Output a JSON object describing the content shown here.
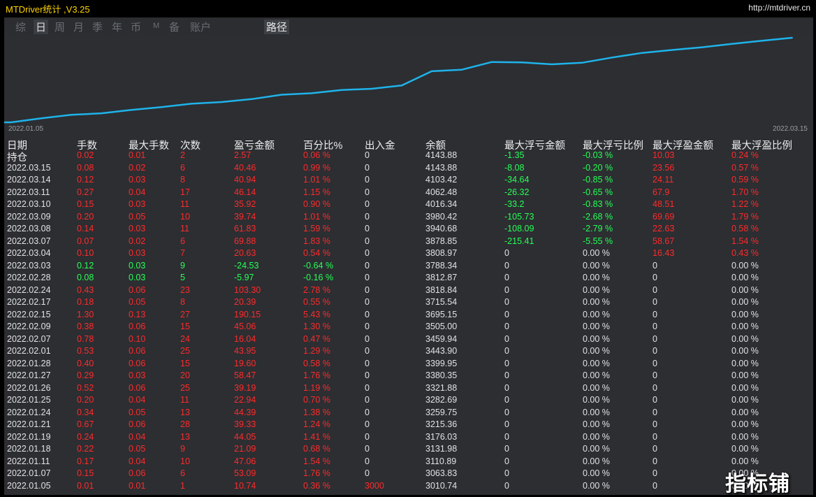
{
  "app": {
    "title": "MTDriver统计 ,V3.25",
    "url": "http://mtdriver.cn"
  },
  "tabs": [
    {
      "label": "综",
      "active": false
    },
    {
      "label": "日",
      "active": true
    },
    {
      "label": "周",
      "active": false
    },
    {
      "label": "月",
      "active": false
    },
    {
      "label": "季",
      "active": false
    },
    {
      "label": "年",
      "active": false
    },
    {
      "label": "币",
      "active": false
    },
    {
      "label": "M",
      "active": false
    },
    {
      "label": "备",
      "active": false
    },
    {
      "label": "账户",
      "active": false
    }
  ],
  "path_button": "路径",
  "chart_data": {
    "type": "line",
    "x_start_label": "2022.01.05",
    "x_end_label": "2022.03.15",
    "series_color": "#1fb3ea",
    "x": [
      "2022.01.05",
      "2022.01.07",
      "2022.01.11",
      "2022.01.18",
      "2022.01.19",
      "2022.01.21",
      "2022.01.24",
      "2022.01.25",
      "2022.01.26",
      "2022.01.27",
      "2022.01.28",
      "2022.02.01",
      "2022.02.07",
      "2022.02.09",
      "2022.02.15",
      "2022.02.17",
      "2022.02.24",
      "2022.02.28",
      "2022.03.03",
      "2022.03.04",
      "2022.03.07",
      "2022.03.08",
      "2022.03.09",
      "2022.03.10",
      "2022.03.11",
      "2022.03.14",
      "2022.03.15"
    ],
    "values": [
      3010.74,
      3063.83,
      3110.89,
      3131.98,
      3176.03,
      3215.36,
      3259.75,
      3282.69,
      3321.88,
      3380.35,
      3399.95,
      3443.9,
      3459.94,
      3505.0,
      3695.15,
      3715.54,
      3818.84,
      3812.87,
      3788.34,
      3808.97,
      3878.85,
      3940.68,
      3980.42,
      4016.34,
      4062.48,
      4103.42,
      4143.88
    ],
    "ylim": [
      3010.74,
      4143.88
    ]
  },
  "columns": [
    "日期",
    "手数",
    "最大手数",
    "次数",
    "盈亏金额",
    "百分比%",
    "出入金",
    "余额",
    "最大浮亏金额",
    "最大浮亏比例",
    "最大浮盈金额",
    "最大浮盈比例"
  ],
  "holdings_label": "持仓",
  "colors": {
    "red": "#ff2a2a",
    "green": "#27ff55",
    "white": "#e2e2e2"
  },
  "rows": [
    {
      "date": "",
      "lots": "0.02",
      "max_lots": "0.01",
      "trades": "2",
      "pnl": "2.57",
      "pct": "0.06 %",
      "io": "0",
      "balance": "4143.88",
      "max_loss": "-1.35",
      "max_loss_pct": "-0.03 %",
      "max_gain": "10.03",
      "max_gain_pct": "0.24 %",
      "pc": "red",
      "lc": "green",
      "gc": "red",
      "ioc": "white"
    },
    {
      "date": "2022.03.15",
      "lots": "0.08",
      "max_lots": "0.02",
      "trades": "6",
      "pnl": "40.46",
      "pct": "0.99 %",
      "io": "0",
      "balance": "4143.88",
      "max_loss": "-8.08",
      "max_loss_pct": "-0.20 %",
      "max_gain": "23.56",
      "max_gain_pct": "0.57 %",
      "pc": "red",
      "lc": "green",
      "gc": "red",
      "ioc": "white"
    },
    {
      "date": "2022.03.14",
      "lots": "0.12",
      "max_lots": "0.03",
      "trades": "8",
      "pnl": "40.94",
      "pct": "1.01 %",
      "io": "0",
      "balance": "4103.42",
      "max_loss": "-34.64",
      "max_loss_pct": "-0.85 %",
      "max_gain": "24.11",
      "max_gain_pct": "0.59 %",
      "pc": "red",
      "lc": "green",
      "gc": "red",
      "ioc": "white"
    },
    {
      "date": "2022.03.11",
      "lots": "0.27",
      "max_lots": "0.04",
      "trades": "17",
      "pnl": "46.14",
      "pct": "1.15 %",
      "io": "0",
      "balance": "4062.48",
      "max_loss": "-26.32",
      "max_loss_pct": "-0.65 %",
      "max_gain": "67.9",
      "max_gain_pct": "1.70 %",
      "pc": "red",
      "lc": "green",
      "gc": "red",
      "ioc": "white"
    },
    {
      "date": "2022.03.10",
      "lots": "0.15",
      "max_lots": "0.03",
      "trades": "11",
      "pnl": "35.92",
      "pct": "0.90 %",
      "io": "0",
      "balance": "4016.34",
      "max_loss": "-33.2",
      "max_loss_pct": "-0.83 %",
      "max_gain": "48.51",
      "max_gain_pct": "1.22 %",
      "pc": "red",
      "lc": "green",
      "gc": "red",
      "ioc": "white"
    },
    {
      "date": "2022.03.09",
      "lots": "0.20",
      "max_lots": "0.05",
      "trades": "10",
      "pnl": "39.74",
      "pct": "1.01 %",
      "io": "0",
      "balance": "3980.42",
      "max_loss": "-105.73",
      "max_loss_pct": "-2.68 %",
      "max_gain": "69.69",
      "max_gain_pct": "1.79 %",
      "pc": "red",
      "lc": "green",
      "gc": "red",
      "ioc": "white"
    },
    {
      "date": "2022.03.08",
      "lots": "0.14",
      "max_lots": "0.03",
      "trades": "11",
      "pnl": "61.83",
      "pct": "1.59 %",
      "io": "0",
      "balance": "3940.68",
      "max_loss": "-108.09",
      "max_loss_pct": "-2.79 %",
      "max_gain": "22.63",
      "max_gain_pct": "0.58 %",
      "pc": "red",
      "lc": "green",
      "gc": "red",
      "ioc": "white"
    },
    {
      "date": "2022.03.07",
      "lots": "0.07",
      "max_lots": "0.02",
      "trades": "6",
      "pnl": "69.88",
      "pct": "1.83 %",
      "io": "0",
      "balance": "3878.85",
      "max_loss": "-215.41",
      "max_loss_pct": "-5.55 %",
      "max_gain": "58.67",
      "max_gain_pct": "1.54 %",
      "pc": "red",
      "lc": "green",
      "gc": "red",
      "ioc": "white"
    },
    {
      "date": "2022.03.04",
      "lots": "0.10",
      "max_lots": "0.03",
      "trades": "7",
      "pnl": "20.63",
      "pct": "0.54 %",
      "io": "0",
      "balance": "3808.97",
      "max_loss": "0",
      "max_loss_pct": "0.00 %",
      "max_gain": "16.43",
      "max_gain_pct": "0.43 %",
      "pc": "red",
      "lc": "white",
      "gc": "red",
      "ioc": "white"
    },
    {
      "date": "2022.03.03",
      "lots": "0.12",
      "max_lots": "0.03",
      "trades": "9",
      "pnl": "-24.53",
      "pct": "-0.64 %",
      "io": "0",
      "balance": "3788.34",
      "max_loss": "0",
      "max_loss_pct": "0.00 %",
      "max_gain": "0",
      "max_gain_pct": "0.00 %",
      "pc": "green",
      "lc": "white",
      "gc": "white",
      "ioc": "white"
    },
    {
      "date": "2022.02.28",
      "lots": "0.08",
      "max_lots": "0.03",
      "trades": "5",
      "pnl": "-5.97",
      "pct": "-0.16 %",
      "io": "0",
      "balance": "3812.87",
      "max_loss": "0",
      "max_loss_pct": "0.00 %",
      "max_gain": "0",
      "max_gain_pct": "0.00 %",
      "pc": "green",
      "lc": "white",
      "gc": "white",
      "ioc": "white"
    },
    {
      "date": "2022.02.24",
      "lots": "0.43",
      "max_lots": "0.06",
      "trades": "23",
      "pnl": "103.30",
      "pct": "2.78 %",
      "io": "0",
      "balance": "3818.84",
      "max_loss": "0",
      "max_loss_pct": "0.00 %",
      "max_gain": "0",
      "max_gain_pct": "0.00 %",
      "pc": "red",
      "lc": "white",
      "gc": "white",
      "ioc": "white"
    },
    {
      "date": "2022.02.17",
      "lots": "0.18",
      "max_lots": "0.05",
      "trades": "8",
      "pnl": "20.39",
      "pct": "0.55 %",
      "io": "0",
      "balance": "3715.54",
      "max_loss": "0",
      "max_loss_pct": "0.00 %",
      "max_gain": "0",
      "max_gain_pct": "0.00 %",
      "pc": "red",
      "lc": "white",
      "gc": "white",
      "ioc": "white"
    },
    {
      "date": "2022.02.15",
      "lots": "1.30",
      "max_lots": "0.13",
      "trades": "27",
      "pnl": "190.15",
      "pct": "5.43 %",
      "io": "0",
      "balance": "3695.15",
      "max_loss": "0",
      "max_loss_pct": "0.00 %",
      "max_gain": "0",
      "max_gain_pct": "0.00 %",
      "pc": "red",
      "lc": "white",
      "gc": "white",
      "ioc": "white"
    },
    {
      "date": "2022.02.09",
      "lots": "0.38",
      "max_lots": "0.06",
      "trades": "15",
      "pnl": "45.06",
      "pct": "1.30 %",
      "io": "0",
      "balance": "3505.00",
      "max_loss": "0",
      "max_loss_pct": "0.00 %",
      "max_gain": "0",
      "max_gain_pct": "0.00 %",
      "pc": "red",
      "lc": "white",
      "gc": "white",
      "ioc": "white"
    },
    {
      "date": "2022.02.07",
      "lots": "0.78",
      "max_lots": "0.10",
      "trades": "24",
      "pnl": "16.04",
      "pct": "0.47 %",
      "io": "0",
      "balance": "3459.94",
      "max_loss": "0",
      "max_loss_pct": "0.00 %",
      "max_gain": "0",
      "max_gain_pct": "0.00 %",
      "pc": "red",
      "lc": "white",
      "gc": "white",
      "ioc": "white"
    },
    {
      "date": "2022.02.01",
      "lots": "0.53",
      "max_lots": "0.06",
      "trades": "25",
      "pnl": "43.95",
      "pct": "1.29 %",
      "io": "0",
      "balance": "3443.90",
      "max_loss": "0",
      "max_loss_pct": "0.00 %",
      "max_gain": "0",
      "max_gain_pct": "0.00 %",
      "pc": "red",
      "lc": "white",
      "gc": "white",
      "ioc": "white"
    },
    {
      "date": "2022.01.28",
      "lots": "0.40",
      "max_lots": "0.06",
      "trades": "15",
      "pnl": "19.60",
      "pct": "0.58 %",
      "io": "0",
      "balance": "3399.95",
      "max_loss": "0",
      "max_loss_pct": "0.00 %",
      "max_gain": "0",
      "max_gain_pct": "0.00 %",
      "pc": "red",
      "lc": "white",
      "gc": "white",
      "ioc": "white"
    },
    {
      "date": "2022.01.27",
      "lots": "0.29",
      "max_lots": "0.03",
      "trades": "20",
      "pnl": "58.47",
      "pct": "1.76 %",
      "io": "0",
      "balance": "3380.35",
      "max_loss": "0",
      "max_loss_pct": "0.00 %",
      "max_gain": "0",
      "max_gain_pct": "0.00 %",
      "pc": "red",
      "lc": "white",
      "gc": "white",
      "ioc": "white"
    },
    {
      "date": "2022.01.26",
      "lots": "0.52",
      "max_lots": "0.06",
      "trades": "25",
      "pnl": "39.19",
      "pct": "1.19 %",
      "io": "0",
      "balance": "3321.88",
      "max_loss": "0",
      "max_loss_pct": "0.00 %",
      "max_gain": "0",
      "max_gain_pct": "0.00 %",
      "pc": "red",
      "lc": "white",
      "gc": "white",
      "ioc": "white"
    },
    {
      "date": "2022.01.25",
      "lots": "0.20",
      "max_lots": "0.04",
      "trades": "11",
      "pnl": "22.94",
      "pct": "0.70 %",
      "io": "0",
      "balance": "3282.69",
      "max_loss": "0",
      "max_loss_pct": "0.00 %",
      "max_gain": "0",
      "max_gain_pct": "0.00 %",
      "pc": "red",
      "lc": "white",
      "gc": "white",
      "ioc": "white"
    },
    {
      "date": "2022.01.24",
      "lots": "0.34",
      "max_lots": "0.05",
      "trades": "13",
      "pnl": "44.39",
      "pct": "1.38 %",
      "io": "0",
      "balance": "3259.75",
      "max_loss": "0",
      "max_loss_pct": "0.00 %",
      "max_gain": "0",
      "max_gain_pct": "0.00 %",
      "pc": "red",
      "lc": "white",
      "gc": "white",
      "ioc": "white"
    },
    {
      "date": "2022.01.21",
      "lots": "0.67",
      "max_lots": "0.06",
      "trades": "28",
      "pnl": "39.33",
      "pct": "1.24 %",
      "io": "0",
      "balance": "3215.36",
      "max_loss": "0",
      "max_loss_pct": "0.00 %",
      "max_gain": "0",
      "max_gain_pct": "0.00 %",
      "pc": "red",
      "lc": "white",
      "gc": "white",
      "ioc": "white"
    },
    {
      "date": "2022.01.19",
      "lots": "0.24",
      "max_lots": "0.04",
      "trades": "13",
      "pnl": "44.05",
      "pct": "1.41 %",
      "io": "0",
      "balance": "3176.03",
      "max_loss": "0",
      "max_loss_pct": "0.00 %",
      "max_gain": "0",
      "max_gain_pct": "0.00 %",
      "pc": "red",
      "lc": "white",
      "gc": "white",
      "ioc": "white"
    },
    {
      "date": "2022.01.18",
      "lots": "0.22",
      "max_lots": "0.05",
      "trades": "9",
      "pnl": "21.09",
      "pct": "0.68 %",
      "io": "0",
      "balance": "3131.98",
      "max_loss": "0",
      "max_loss_pct": "0.00 %",
      "max_gain": "0",
      "max_gain_pct": "0.00 %",
      "pc": "red",
      "lc": "white",
      "gc": "white",
      "ioc": "white"
    },
    {
      "date": "2022.01.11",
      "lots": "0.17",
      "max_lots": "0.04",
      "trades": "10",
      "pnl": "47.06",
      "pct": "1.54 %",
      "io": "0",
      "balance": "3110.89",
      "max_loss": "0",
      "max_loss_pct": "0.00 %",
      "max_gain": "0",
      "max_gain_pct": "0.00 %",
      "pc": "red",
      "lc": "white",
      "gc": "white",
      "ioc": "white"
    },
    {
      "date": "2022.01.07",
      "lots": "0.15",
      "max_lots": "0.06",
      "trades": "6",
      "pnl": "53.09",
      "pct": "1.76 %",
      "io": "0",
      "balance": "3063.83",
      "max_loss": "0",
      "max_loss_pct": "0.00 %",
      "max_gain": "0",
      "max_gain_pct": "0.00 %",
      "pc": "red",
      "lc": "white",
      "gc": "white",
      "ioc": "white"
    },
    {
      "date": "2022.01.05",
      "lots": "0.01",
      "max_lots": "0.01",
      "trades": "1",
      "pnl": "10.74",
      "pct": "0.36 %",
      "io": "3000",
      "balance": "3010.74",
      "max_loss": "0",
      "max_loss_pct": "0.00 %",
      "max_gain": "0",
      "max_gain_pct": "0.00 %",
      "pc": "red",
      "lc": "white",
      "gc": "white",
      "ioc": "red"
    }
  ],
  "watermark": "指标铺"
}
